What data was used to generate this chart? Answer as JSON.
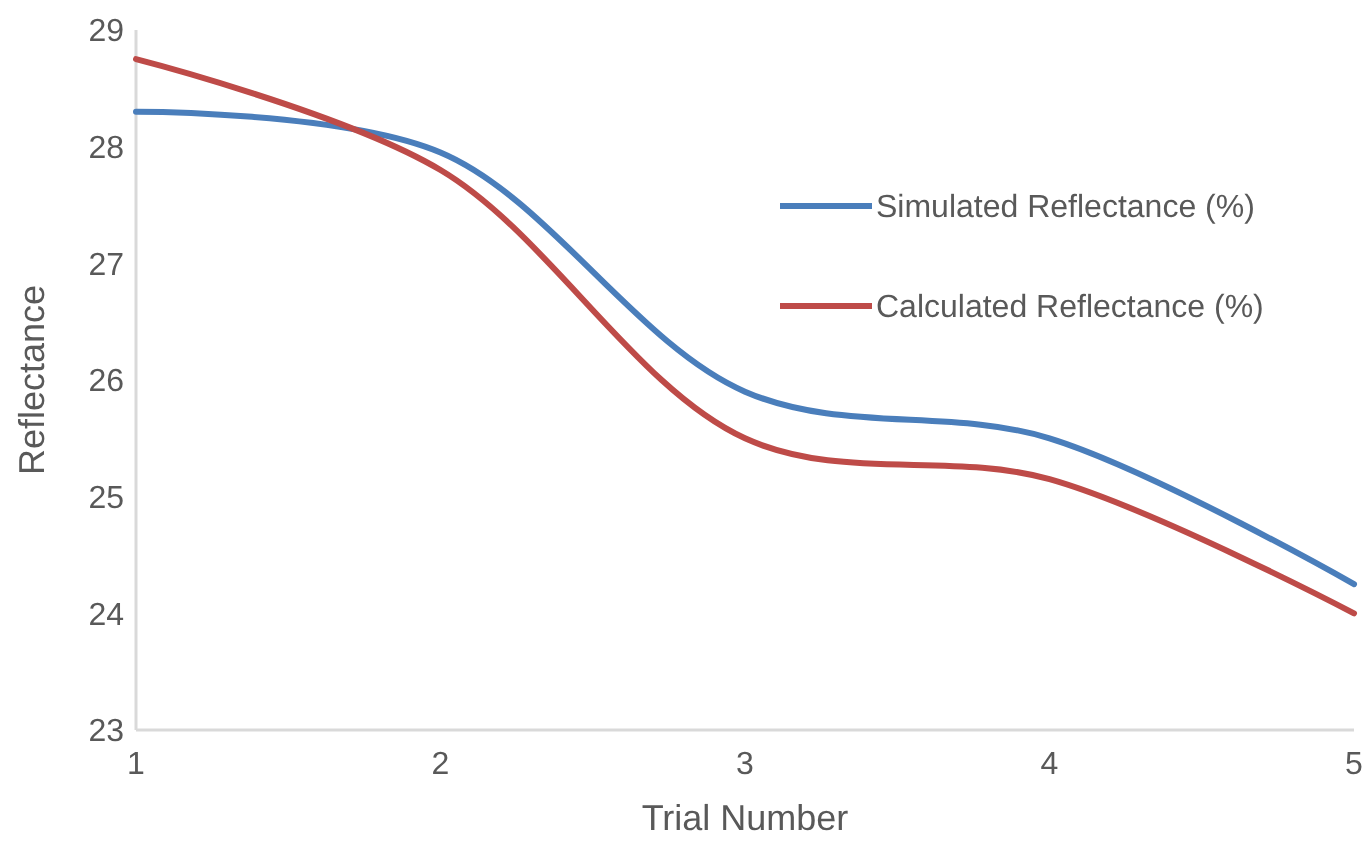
{
  "chart_data": {
    "type": "line",
    "xlabel": "Trial Number",
    "ylabel": "Reflectance",
    "x": [
      1,
      2,
      3,
      4,
      5
    ],
    "xlim": [
      1,
      5
    ],
    "xticks": [
      1,
      2,
      3,
      4,
      5
    ],
    "ylim": [
      23,
      29
    ],
    "yticks": [
      23,
      24,
      25,
      26,
      27,
      28,
      29
    ],
    "grid": false,
    "legend": "right",
    "marker": "none",
    "line_style": "solid",
    "series": [
      {
        "name": "Simulated Reflectance (%)",
        "color": "#4a7ebb",
        "values": [
          28.3,
          27.95,
          25.9,
          25.5,
          24.25
        ]
      },
      {
        "name": "Calculated Reflectance (%)",
        "color": "#be4b48",
        "values": [
          28.75,
          27.8,
          25.5,
          25.15,
          24.0
        ]
      }
    ]
  }
}
